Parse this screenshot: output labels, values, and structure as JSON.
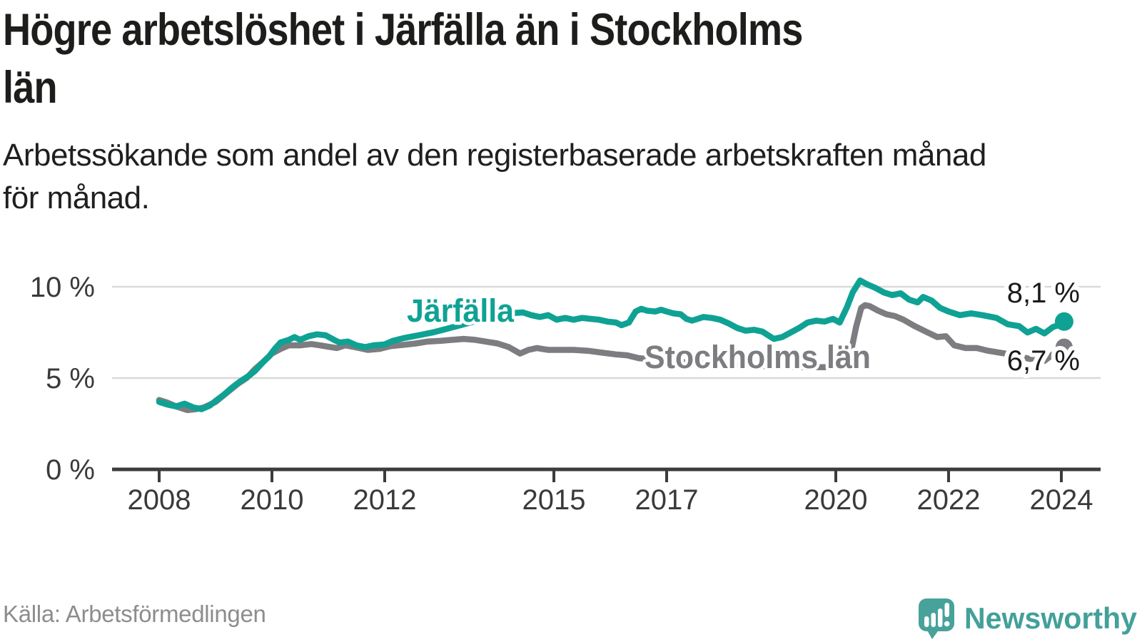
{
  "header": {
    "title_lines": [
      "Högre arbetslöshet i Järfälla än i Stockholms",
      "län"
    ],
    "subtitle_lines": [
      "Arbetssökande som andel av den registerbaserade arbetskraften månad",
      "för månad."
    ]
  },
  "footer": {
    "source": "Källa: Arbetsförmedlingen",
    "logo_text": "Newsworthy",
    "logo_color": "#43a09a"
  },
  "chart_data": {
    "type": "line",
    "title": "Högre arbetslöshet i Järfälla än i Stockholms län",
    "subtitle": "Arbetssökande som andel av den registerbaserade arbetskraften månad för månad.",
    "source": "Källa: Arbetsförmedlingen",
    "xlabel": "",
    "ylabel": "",
    "grid": "horizontal",
    "xlim": [
      2007.9,
      2024.7
    ],
    "ylim": [
      0,
      10.8
    ],
    "x_ticks": [
      2008,
      2010,
      2012,
      2015,
      2017,
      2020,
      2022,
      2024
    ],
    "x_tick_labels": [
      "2008",
      "2010",
      "2012",
      "2015",
      "2017",
      "2020",
      "2022",
      "2024"
    ],
    "y_ticks": [
      0,
      5,
      10
    ],
    "y_tick_labels": [
      "0 %",
      "5 %",
      "10 %"
    ],
    "series": [
      {
        "id": "stockholms-lan",
        "name": "Stockholms län",
        "color": "#7d7d81",
        "end_label": "6,7 %",
        "end_value": 6.7,
        "points": [
          [
            2008.0,
            3.8
          ],
          [
            2008.15,
            3.65
          ],
          [
            2008.3,
            3.45
          ],
          [
            2008.5,
            3.25
          ],
          [
            2008.65,
            3.3
          ],
          [
            2008.8,
            3.4
          ],
          [
            2009.0,
            3.7
          ],
          [
            2009.2,
            4.2
          ],
          [
            2009.4,
            4.7
          ],
          [
            2009.55,
            5.0
          ],
          [
            2009.7,
            5.5
          ],
          [
            2009.85,
            5.9
          ],
          [
            2010.0,
            6.35
          ],
          [
            2010.15,
            6.6
          ],
          [
            2010.3,
            6.8
          ],
          [
            2010.5,
            6.8
          ],
          [
            2010.7,
            6.87
          ],
          [
            2010.85,
            6.8
          ],
          [
            2011.0,
            6.72
          ],
          [
            2011.15,
            6.65
          ],
          [
            2011.3,
            6.8
          ],
          [
            2011.5,
            6.68
          ],
          [
            2011.7,
            6.55
          ],
          [
            2011.9,
            6.6
          ],
          [
            2012.1,
            6.75
          ],
          [
            2012.35,
            6.83
          ],
          [
            2012.55,
            6.9
          ],
          [
            2012.75,
            7.0
          ],
          [
            2013.0,
            7.05
          ],
          [
            2013.2,
            7.1
          ],
          [
            2013.4,
            7.15
          ],
          [
            2013.6,
            7.1
          ],
          [
            2013.8,
            7.0
          ],
          [
            2014.0,
            6.9
          ],
          [
            2014.2,
            6.7
          ],
          [
            2014.4,
            6.35
          ],
          [
            2014.55,
            6.55
          ],
          [
            2014.7,
            6.65
          ],
          [
            2014.9,
            6.55
          ],
          [
            2015.1,
            6.55
          ],
          [
            2015.35,
            6.55
          ],
          [
            2015.6,
            6.5
          ],
          [
            2015.85,
            6.4
          ],
          [
            2016.1,
            6.3
          ],
          [
            2016.3,
            6.25
          ],
          [
            2016.5,
            6.1
          ],
          [
            2016.8,
            6.0
          ],
          [
            2017.2,
            5.9
          ],
          [
            2017.6,
            5.8
          ],
          [
            2018.0,
            5.75
          ],
          [
            2018.4,
            5.7
          ],
          [
            2018.8,
            5.65
          ],
          [
            2019.2,
            5.6
          ],
          [
            2019.6,
            5.6
          ],
          [
            2019.95,
            5.6
          ],
          [
            2020.1,
            5.7
          ],
          [
            2020.2,
            6.0
          ],
          [
            2020.28,
            6.6
          ],
          [
            2020.36,
            7.8
          ],
          [
            2020.45,
            8.85
          ],
          [
            2020.52,
            9.0
          ],
          [
            2020.6,
            8.95
          ],
          [
            2020.75,
            8.7
          ],
          [
            2020.9,
            8.5
          ],
          [
            2021.05,
            8.4
          ],
          [
            2021.2,
            8.2
          ],
          [
            2021.4,
            7.85
          ],
          [
            2021.6,
            7.55
          ],
          [
            2021.8,
            7.25
          ],
          [
            2021.95,
            7.3
          ],
          [
            2022.1,
            6.8
          ],
          [
            2022.3,
            6.65
          ],
          [
            2022.5,
            6.65
          ],
          [
            2022.7,
            6.5
          ],
          [
            2022.9,
            6.4
          ],
          [
            2023.1,
            6.3
          ],
          [
            2023.3,
            6.15
          ],
          [
            2023.45,
            6.05
          ],
          [
            2023.55,
            6.15
          ],
          [
            2023.7,
            5.95
          ],
          [
            2023.85,
            6.3
          ],
          [
            2024.0,
            6.55
          ],
          [
            2024.05,
            6.7
          ]
        ]
      },
      {
        "id": "jarfalla",
        "name": "Järfälla",
        "color": "#0fa294",
        "end_label": "8,1 %",
        "end_value": 8.1,
        "points": [
          [
            2008.0,
            3.7
          ],
          [
            2008.15,
            3.55
          ],
          [
            2008.3,
            3.45
          ],
          [
            2008.45,
            3.6
          ],
          [
            2008.6,
            3.4
          ],
          [
            2008.75,
            3.3
          ],
          [
            2008.9,
            3.5
          ],
          [
            2009.0,
            3.75
          ],
          [
            2009.15,
            4.1
          ],
          [
            2009.3,
            4.5
          ],
          [
            2009.45,
            4.85
          ],
          [
            2009.6,
            5.15
          ],
          [
            2009.7,
            5.4
          ],
          [
            2009.85,
            5.9
          ],
          [
            2009.95,
            6.2
          ],
          [
            2010.05,
            6.6
          ],
          [
            2010.15,
            6.95
          ],
          [
            2010.3,
            7.1
          ],
          [
            2010.4,
            7.25
          ],
          [
            2010.5,
            7.1
          ],
          [
            2010.65,
            7.3
          ],
          [
            2010.8,
            7.4
          ],
          [
            2010.95,
            7.35
          ],
          [
            2011.1,
            7.1
          ],
          [
            2011.2,
            6.95
          ],
          [
            2011.35,
            7.0
          ],
          [
            2011.5,
            6.8
          ],
          [
            2011.65,
            6.7
          ],
          [
            2011.8,
            6.8
          ],
          [
            2012.0,
            6.85
          ],
          [
            2012.15,
            7.05
          ],
          [
            2012.35,
            7.2
          ],
          [
            2012.6,
            7.35
          ],
          [
            2012.85,
            7.5
          ],
          [
            2013.1,
            7.7
          ],
          [
            2013.4,
            7.95
          ],
          [
            2013.7,
            8.2
          ],
          [
            2013.95,
            8.4
          ],
          [
            2014.2,
            8.55
          ],
          [
            2014.45,
            8.6
          ],
          [
            2014.6,
            8.45
          ],
          [
            2014.75,
            8.35
          ],
          [
            2014.9,
            8.45
          ],
          [
            2015.05,
            8.2
          ],
          [
            2015.2,
            8.3
          ],
          [
            2015.35,
            8.2
          ],
          [
            2015.5,
            8.3
          ],
          [
            2015.65,
            8.25
          ],
          [
            2015.8,
            8.2
          ],
          [
            2015.95,
            8.1
          ],
          [
            2016.1,
            8.05
          ],
          [
            2016.2,
            7.9
          ],
          [
            2016.33,
            8.05
          ],
          [
            2016.45,
            8.65
          ],
          [
            2016.55,
            8.8
          ],
          [
            2016.65,
            8.7
          ],
          [
            2016.8,
            8.65
          ],
          [
            2016.9,
            8.75
          ],
          [
            2017.0,
            8.65
          ],
          [
            2017.12,
            8.55
          ],
          [
            2017.25,
            8.5
          ],
          [
            2017.35,
            8.25
          ],
          [
            2017.45,
            8.15
          ],
          [
            2017.55,
            8.25
          ],
          [
            2017.65,
            8.35
          ],
          [
            2017.8,
            8.3
          ],
          [
            2017.95,
            8.2
          ],
          [
            2018.1,
            8.0
          ],
          [
            2018.25,
            7.75
          ],
          [
            2018.4,
            7.6
          ],
          [
            2018.55,
            7.65
          ],
          [
            2018.7,
            7.55
          ],
          [
            2018.9,
            7.15
          ],
          [
            2019.05,
            7.25
          ],
          [
            2019.2,
            7.5
          ],
          [
            2019.35,
            7.75
          ],
          [
            2019.5,
            8.05
          ],
          [
            2019.65,
            8.15
          ],
          [
            2019.8,
            8.1
          ],
          [
            2019.95,
            8.25
          ],
          [
            2020.07,
            8.05
          ],
          [
            2020.2,
            8.9
          ],
          [
            2020.3,
            9.7
          ],
          [
            2020.43,
            10.35
          ],
          [
            2020.55,
            10.15
          ],
          [
            2020.7,
            9.95
          ],
          [
            2020.85,
            9.7
          ],
          [
            2021.0,
            9.55
          ],
          [
            2021.15,
            9.65
          ],
          [
            2021.3,
            9.3
          ],
          [
            2021.45,
            9.15
          ],
          [
            2021.55,
            9.45
          ],
          [
            2021.7,
            9.25
          ],
          [
            2021.85,
            8.85
          ],
          [
            2022.0,
            8.65
          ],
          [
            2022.2,
            8.45
          ],
          [
            2022.4,
            8.55
          ],
          [
            2022.6,
            8.45
          ],
          [
            2022.85,
            8.3
          ],
          [
            2023.05,
            7.95
          ],
          [
            2023.25,
            7.85
          ],
          [
            2023.4,
            7.5
          ],
          [
            2023.55,
            7.7
          ],
          [
            2023.7,
            7.45
          ],
          [
            2023.85,
            7.8
          ],
          [
            2024.0,
            7.95
          ],
          [
            2024.05,
            8.1
          ]
        ]
      }
    ]
  }
}
